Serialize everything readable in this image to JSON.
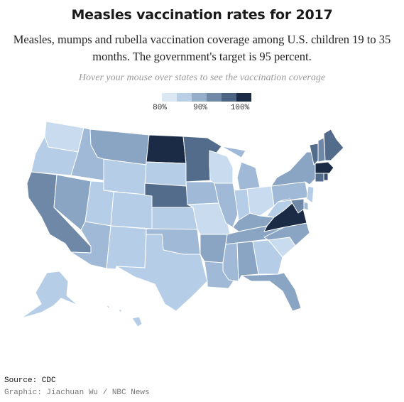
{
  "header": {
    "title": "Measles vaccination rates for 2017",
    "subtitle": "Measles, mumps and rubella vaccination coverage among U.S. children 19 to 35 months. The government's target is 95 percent.",
    "hint": "Hover your mouse over states to see the vaccination coverage"
  },
  "legend": {
    "labels": [
      "80%",
      "90%",
      "100%"
    ],
    "colors": [
      "#dbe8f4",
      "#b9cfe6",
      "#94aec9",
      "#6f89a6",
      "#4b6483",
      "#1c2b45"
    ]
  },
  "colors": {
    "v1": "#c9dcef",
    "v2": "#b5cde6",
    "v3": "#9fb9d6",
    "v4": "#8aa4c3",
    "v5": "#6f88a8",
    "v6": "#546c8c",
    "v7": "#3a4f6f",
    "v8": "#1c2b45",
    "border": "#ffffff"
  },
  "states": [
    {
      "abbr": "WA",
      "level": "v1"
    },
    {
      "abbr": "OR",
      "level": "v2"
    },
    {
      "abbr": "CA",
      "level": "v5"
    },
    {
      "abbr": "ID",
      "level": "v3"
    },
    {
      "abbr": "NV",
      "level": "v4"
    },
    {
      "abbr": "MT",
      "level": "v4"
    },
    {
      "abbr": "WY",
      "level": "v2"
    },
    {
      "abbr": "UT",
      "level": "v2"
    },
    {
      "abbr": "AZ",
      "level": "v3"
    },
    {
      "abbr": "CO",
      "level": "v2"
    },
    {
      "abbr": "NM",
      "level": "v2"
    },
    {
      "abbr": "ND",
      "level": "v8"
    },
    {
      "abbr": "SD",
      "level": "v2"
    },
    {
      "abbr": "NE",
      "level": "v6"
    },
    {
      "abbr": "KS",
      "level": "v2"
    },
    {
      "abbr": "OK",
      "level": "v3"
    },
    {
      "abbr": "TX",
      "level": "v2"
    },
    {
      "abbr": "MN",
      "level": "v6"
    },
    {
      "abbr": "IA",
      "level": "v3"
    },
    {
      "abbr": "MO",
      "level": "v1"
    },
    {
      "abbr": "AR",
      "level": "v4"
    },
    {
      "abbr": "LA",
      "level": "v3"
    },
    {
      "abbr": "WI",
      "level": "v1"
    },
    {
      "abbr": "IL",
      "level": "v3"
    },
    {
      "abbr": "MS",
      "level": "v3"
    },
    {
      "abbr": "MI",
      "level": "v3"
    },
    {
      "abbr": "IN",
      "level": "v2"
    },
    {
      "abbr": "KY",
      "level": "v4"
    },
    {
      "abbr": "TN",
      "level": "v4"
    },
    {
      "abbr": "AL",
      "level": "v4"
    },
    {
      "abbr": "OH",
      "level": "v1"
    },
    {
      "abbr": "GA",
      "level": "v2"
    },
    {
      "abbr": "FL",
      "level": "v4"
    },
    {
      "abbr": "SC",
      "level": "v1"
    },
    {
      "abbr": "NC",
      "level": "v4"
    },
    {
      "abbr": "VA",
      "level": "v8"
    },
    {
      "abbr": "WV",
      "level": "v2"
    },
    {
      "abbr": "PA",
      "level": "v3"
    },
    {
      "abbr": "NY",
      "level": "v4"
    },
    {
      "abbr": "VT",
      "level": "v6"
    },
    {
      "abbr": "NH",
      "level": "v5"
    },
    {
      "abbr": "ME",
      "level": "v6"
    },
    {
      "abbr": "MA",
      "level": "v8"
    },
    {
      "abbr": "CT",
      "level": "v6"
    },
    {
      "abbr": "RI",
      "level": "v7"
    },
    {
      "abbr": "NJ",
      "level": "v2"
    },
    {
      "abbr": "DE",
      "level": "v3"
    },
    {
      "abbr": "MD",
      "level": "v5"
    },
    {
      "abbr": "AK",
      "level": "v2"
    },
    {
      "abbr": "HI",
      "level": "v2"
    }
  ],
  "footer": {
    "source": "Source: CDC",
    "credit": "Graphic: Jiachuan Wu / NBC News"
  }
}
